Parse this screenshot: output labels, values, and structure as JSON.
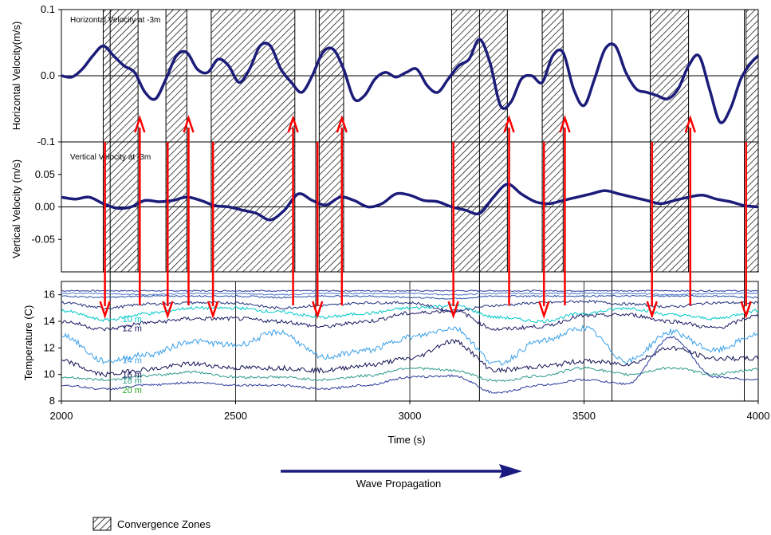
{
  "colors": {
    "velocity_line": "#1c1c7a",
    "arrow": "#ff0000",
    "wave_arrow": "#1a1a80",
    "temperature": [
      "#2a3a9a",
      "#4a78c8",
      "#2a4fa8",
      "#1f2f7a",
      "#00c8c8",
      "#1a1a66",
      "#3aa0e8",
      "#111155",
      "#2f9a8a"
    ]
  },
  "wave_propagation_label": "Wave Propagation",
  "legend_label": "Convergence Zones",
  "chart_data": [
    {
      "type": "line",
      "panel": "horizontal_velocity",
      "ylabel": "Horizontal Velocity(m/s)",
      "annotation": "Horizontal Velocity at -3m",
      "xlim": [
        2000,
        4000
      ],
      "ylim": [
        -0.1,
        0.1
      ],
      "yticks": [
        -0.1,
        0.0,
        0.1
      ],
      "ytick_labels": [
        "-0.1",
        "0.0",
        "0.1"
      ],
      "series": [
        {
          "x": [
            2000,
            2030,
            2060,
            2090,
            2120,
            2150,
            2180,
            2210,
            2240,
            2270,
            2300,
            2330,
            2360,
            2390,
            2420,
            2450,
            2480,
            2510,
            2540,
            2570,
            2600,
            2630,
            2660,
            2690,
            2720,
            2750,
            2780,
            2810,
            2840,
            2870,
            2900,
            2930,
            2960,
            2990,
            3020,
            3050,
            3080,
            3110,
            3140,
            3170,
            3200,
            3230,
            3260,
            3290,
            3320,
            3350,
            3380,
            3410,
            3440,
            3470,
            3500,
            3530,
            3560,
            3590,
            3620,
            3650,
            3680,
            3710,
            3740,
            3770,
            3800,
            3830,
            3860,
            3890,
            3920,
            3950,
            3980,
            4000
          ],
          "y": [
            0.0,
            -0.002,
            0.01,
            0.03,
            0.045,
            0.03,
            0.015,
            0.005,
            -0.025,
            -0.035,
            -0.005,
            0.03,
            0.035,
            0.01,
            0.005,
            0.025,
            0.015,
            -0.01,
            0.01,
            0.045,
            0.045,
            0.01,
            -0.01,
            -0.025,
            0.0,
            0.035,
            0.04,
            0.01,
            -0.035,
            -0.03,
            -0.005,
            0.005,
            -0.002,
            0.005,
            0.01,
            -0.015,
            -0.025,
            -0.005,
            0.015,
            0.025,
            0.055,
            0.02,
            -0.045,
            -0.04,
            -0.005,
            0.0,
            -0.01,
            0.03,
            0.035,
            -0.02,
            -0.045,
            -0.005,
            0.04,
            0.045,
            0.005,
            -0.02,
            -0.025,
            -0.03,
            -0.035,
            -0.02,
            0.015,
            0.03,
            -0.02,
            -0.07,
            -0.05,
            -0.005,
            0.02,
            0.03
          ]
        }
      ]
    },
    {
      "type": "line",
      "panel": "vertical_velocity",
      "ylabel": "Vertical Velocity (m/s)",
      "annotation": "Vertical Velocity at -3m",
      "xlim": [
        2000,
        4000
      ],
      "ylim": [
        -0.1,
        0.1
      ],
      "yticks": [
        -0.05,
        0.0,
        0.05
      ],
      "ytick_labels": [
        "-0.05",
        "0.00",
        "0.05"
      ],
      "series": [
        {
          "x": [
            2000,
            2040,
            2080,
            2120,
            2160,
            2200,
            2240,
            2280,
            2320,
            2360,
            2400,
            2440,
            2480,
            2520,
            2560,
            2600,
            2640,
            2680,
            2720,
            2760,
            2800,
            2840,
            2880,
            2920,
            2960,
            3000,
            3040,
            3080,
            3120,
            3160,
            3200,
            3240,
            3280,
            3320,
            3360,
            3400,
            3440,
            3480,
            3520,
            3560,
            3600,
            3640,
            3680,
            3720,
            3760,
            3800,
            3840,
            3880,
            3920,
            3960,
            4000
          ],
          "y": [
            0.015,
            0.012,
            0.015,
            0.005,
            -0.002,
            0.0,
            0.01,
            0.008,
            0.01,
            0.015,
            0.01,
            0.002,
            0.0,
            -0.005,
            -0.01,
            -0.02,
            -0.005,
            0.02,
            0.01,
            0.003,
            0.015,
            0.01,
            0.0,
            0.005,
            0.02,
            0.018,
            0.01,
            0.008,
            0.0,
            -0.005,
            -0.01,
            0.015,
            0.035,
            0.02,
            0.008,
            0.005,
            0.01,
            0.015,
            0.02,
            0.025,
            0.02,
            0.015,
            0.01,
            0.005,
            0.01,
            0.015,
            0.018,
            0.012,
            0.008,
            0.002,
            0.0
          ]
        }
      ]
    },
    {
      "type": "line",
      "panel": "temperature",
      "ylabel": "Temperature (C)",
      "xlabel": "Time (s)",
      "xlim": [
        2000,
        4000
      ],
      "ylim": [
        8,
        17
      ],
      "yticks": [
        8,
        10,
        12,
        14,
        16
      ],
      "xticks": [
        2000,
        2500,
        3000,
        3500,
        4000
      ],
      "x_nodes": [
        2000,
        2125,
        2250,
        2375,
        2500,
        2625,
        2750,
        2875,
        3000,
        3125,
        3250,
        3375,
        3500,
        3625,
        3750,
        3875,
        4000
      ],
      "series": [
        {
          "name": "",
          "y": [
            16.3,
            16.3,
            16.3,
            16.3,
            16.3,
            16.3,
            16.3,
            16.3,
            16.3,
            16.3,
            16.3,
            16.3,
            16.3,
            16.3,
            16.3,
            16.3,
            16.3
          ]
        },
        {
          "name": "",
          "y": [
            16.1,
            16.1,
            16.0,
            16.1,
            16.1,
            16.0,
            16.1,
            16.1,
            16.1,
            16.0,
            16.1,
            16.1,
            16.1,
            16.1,
            16.0,
            16.1,
            16.1
          ]
        },
        {
          "name": "",
          "y": [
            15.9,
            15.8,
            15.9,
            15.9,
            15.9,
            15.8,
            15.9,
            15.9,
            15.8,
            15.7,
            15.9,
            15.9,
            15.9,
            15.9,
            15.9,
            15.9,
            15.8
          ]
        },
        {
          "name": "",
          "y": [
            15.4,
            15.0,
            15.3,
            15.4,
            15.4,
            15.0,
            15.2,
            15.4,
            15.4,
            14.8,
            15.2,
            15.4,
            15.5,
            15.3,
            15.1,
            15.4,
            15.4
          ]
        },
        {
          "name": "10 m",
          "y": [
            14.8,
            14.1,
            14.6,
            15.0,
            15.0,
            14.7,
            14.3,
            14.6,
            15.0,
            15.2,
            14.3,
            14.0,
            14.6,
            15.0,
            14.5,
            14.2,
            14.8
          ]
        },
        {
          "name": "12 m",
          "y": [
            14.0,
            13.4,
            13.9,
            14.2,
            14.2,
            14.0,
            13.6,
            14.0,
            14.6,
            14.8,
            13.4,
            13.6,
            14.4,
            14.5,
            14.0,
            13.5,
            14.4
          ]
        },
        {
          "name": "14 m",
          "y": [
            13.0,
            11.0,
            11.5,
            12.5,
            12.2,
            13.2,
            11.3,
            11.8,
            12.8,
            13.5,
            10.8,
            12.5,
            13.5,
            11.0,
            13.2,
            11.8,
            13.0
          ]
        },
        {
          "name": "16 m",
          "y": [
            11.0,
            10.0,
            10.4,
            10.8,
            10.5,
            10.5,
            10.3,
            10.7,
            11.2,
            12.5,
            10.3,
            10.6,
            11.0,
            10.8,
            12.0,
            11.2,
            11.2
          ]
        },
        {
          "name": "18 m",
          "y": [
            9.8,
            9.6,
            9.9,
            10.2,
            9.8,
            9.8,
            9.6,
            9.9,
            10.5,
            10.3,
            9.5,
            9.9,
            10.5,
            10.0,
            10.5,
            10.0,
            10.4
          ]
        },
        {
          "name": "20 m",
          "y": [
            9.2,
            8.9,
            9.2,
            9.4,
            9.2,
            9.2,
            8.9,
            9.2,
            9.8,
            9.9,
            8.6,
            9.2,
            9.6,
            9.3,
            12.8,
            9.8,
            9.6
          ]
        }
      ]
    }
  ],
  "convergence_zones": [
    [
      2120,
      2220
    ],
    [
      2300,
      2360
    ],
    [
      2430,
      2670
    ],
    [
      2740,
      2810
    ],
    [
      3120,
      3280
    ],
    [
      3380,
      3440
    ],
    [
      3690,
      3800
    ],
    [
      3965,
      4000
    ]
  ],
  "arrows_down": [
    2125,
    2305,
    2435,
    2735,
    3125,
    3385,
    3695,
    3965
  ],
  "arrows_up": [
    2225,
    2365,
    2665,
    2805,
    3285,
    3445,
    3805
  ],
  "marker_lines": [
    2140,
    2730,
    3200,
    3580,
    3960
  ]
}
